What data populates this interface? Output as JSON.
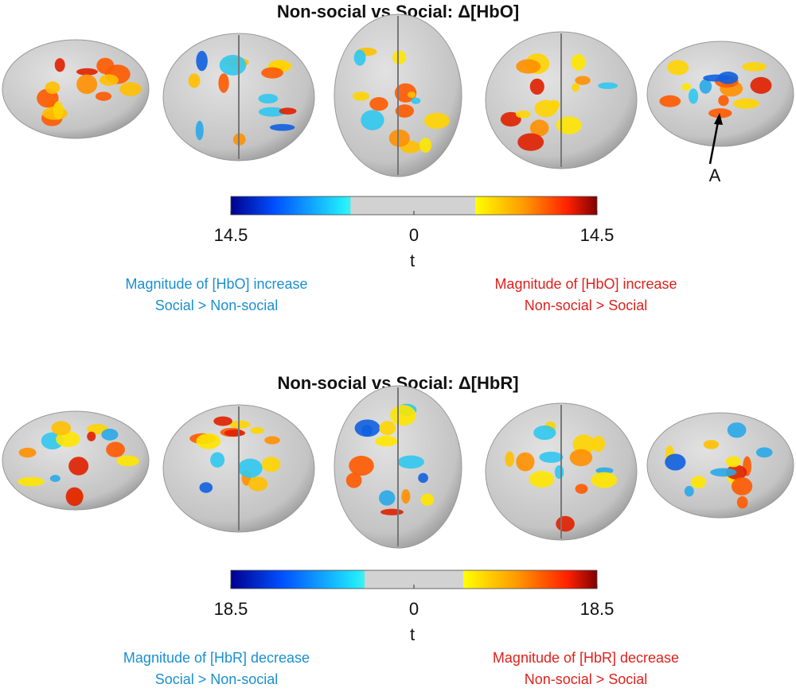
{
  "panels": [
    {
      "title": "Non-social vs Social: Δ[HbO]",
      "annotation": "A",
      "colorbar": {
        "lim": [
          -14.5,
          14.5
        ],
        "ticks": [
          {
            "value": -14.5,
            "label": "14.5"
          },
          0,
          14.5
        ],
        "label": "t"
      },
      "captions": {
        "left": [
          "Magnitude of [HbO] increase",
          "Social > Non-social"
        ],
        "right": [
          "Magnitude of [HbO] increase",
          "Non-social > Social"
        ]
      }
    },
    {
      "title": "Non-social vs Social: Δ[HbR]",
      "colorbar": {
        "lim": [
          -18.5,
          18.5
        ],
        "ticks": [
          {
            "value": -18.5,
            "label": "18.5"
          },
          0,
          18.5
        ],
        "label": "t"
      },
      "captions": {
        "left": [
          "Magnitude of [HbR] decrease",
          "Social > Non-social"
        ],
        "right": [
          "Magnitude of [HbR] decrease",
          "Non-social > Social"
        ]
      }
    }
  ]
}
